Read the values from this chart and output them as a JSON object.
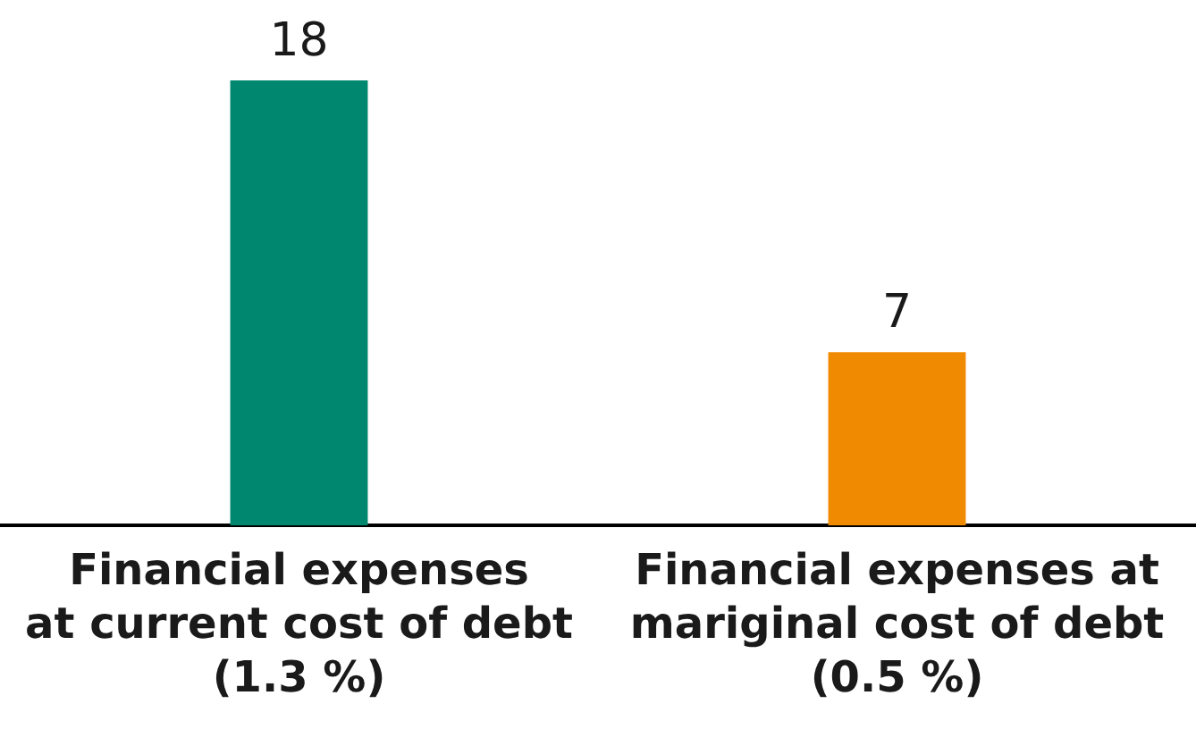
{
  "chart_data": {
    "type": "bar",
    "categories": [
      "Financial expenses\nat current cost of debt\n(1.3 %)",
      "Financial expenses at\nmariginal cost of debt\n(0.5 %)"
    ],
    "values": [
      18,
      7
    ],
    "colors": [
      "#00876f",
      "#f08a00"
    ],
    "data_labels": true
  }
}
